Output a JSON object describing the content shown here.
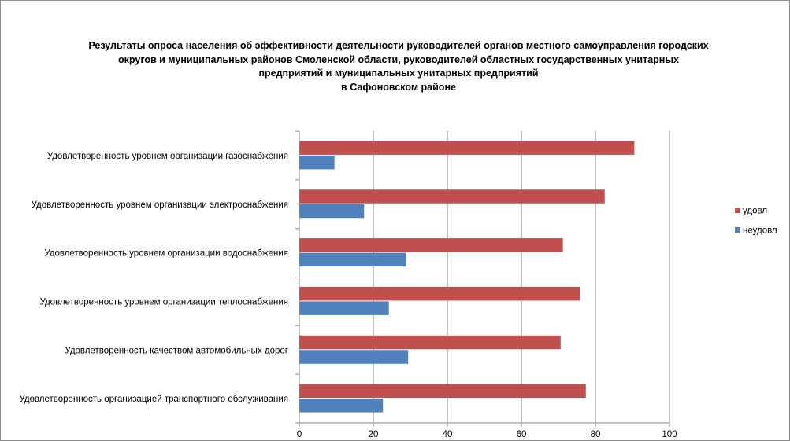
{
  "chart_data": {
    "type": "bar",
    "orientation": "horizontal",
    "title_lines": [
      "Результаты опроса населения об эффективности деятельности руководителей органов местного самоуправления городских",
      "округов и муниципальных районов Смоленской области, руководителей областных государственных унитарных",
      "предприятий и муниципальных унитарных предприятий",
      "в Сафоновском районе"
    ],
    "categories": [
      "Удовлетворенность  уровнем  организации газоснабжения",
      "Удовлетворенность  уровнем организации электроснабжения",
      "Удовлетворенность  уровнем  организации водоснабжения",
      "Удовлетворенность  уровнем  организации теплоснабжения",
      "Удовлетворенность  качеством  автомобильных дорог",
      "Удовлетворенность  организацией транспортного обслуживания"
    ],
    "series": [
      {
        "name": "удовл",
        "color": "#c0504d",
        "values": [
          90.5,
          82.5,
          71.2,
          75.8,
          70.6,
          77.4
        ]
      },
      {
        "name": "неудовл",
        "color": "#4f81bd",
        "values": [
          9.5,
          17.5,
          28.8,
          24.2,
          29.4,
          22.6
        ]
      }
    ],
    "xlim": [
      0,
      100
    ],
    "xticks": [
      0,
      20,
      40,
      60,
      80,
      100
    ],
    "grid": "vertical",
    "legend_position": "right"
  }
}
